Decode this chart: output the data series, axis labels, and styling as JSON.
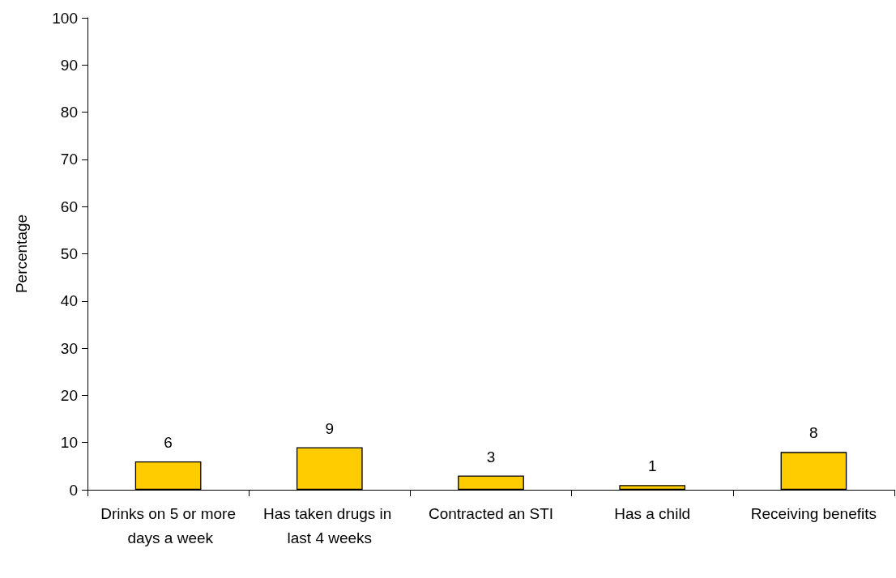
{
  "chart_data": {
    "type": "bar",
    "ylabel": "Percentage",
    "categories": [
      "Drinks on 5 or more days a week",
      "Has taken drugs in last 4 weeks",
      "Contracted an STI",
      "Has a child",
      "Receiving benefits"
    ],
    "values": [
      6,
      9,
      3,
      1,
      8
    ],
    "color": "#ffcc00",
    "ylim": [
      0,
      100
    ],
    "yticks": [
      0,
      10,
      20,
      30,
      40,
      50,
      60,
      70,
      80,
      90,
      100
    ],
    "grid": false,
    "data_labels": true
  }
}
